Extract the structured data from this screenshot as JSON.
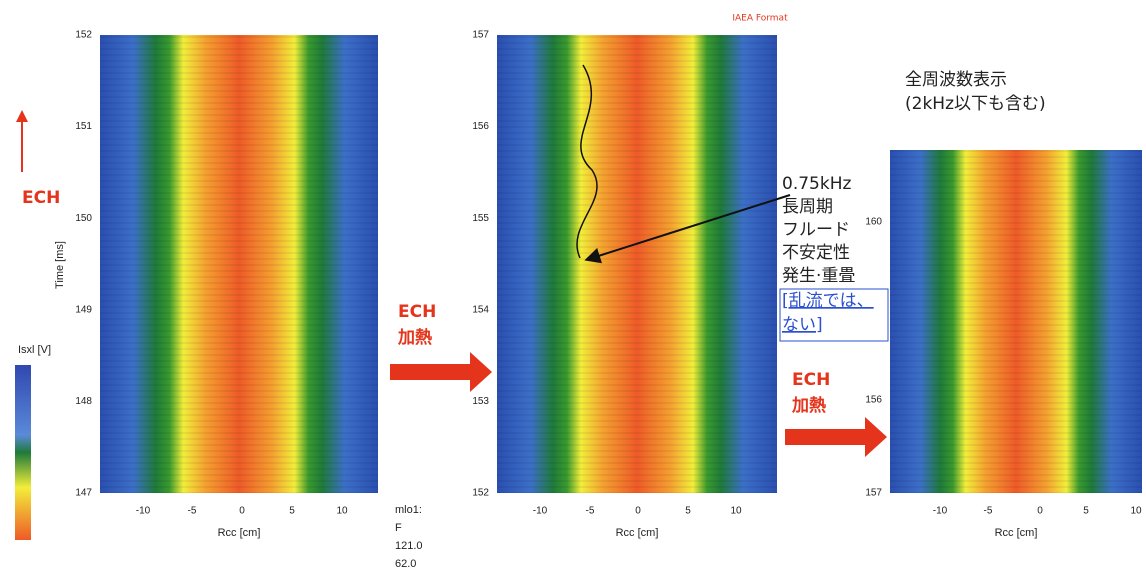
{
  "annotations": {
    "iaea": "IAEA Format",
    "all_freq": [
      "全周波数表示",
      "(2kHz以下も含む)"
    ],
    "ech_left": "ECH",
    "ech_heat_1": [
      "ECH",
      "加熱"
    ],
    "ech_heat_2": [
      "ECH",
      "加熱"
    ],
    "mode_note": [
      "0.75kHz",
      "長周期",
      "フルード",
      "不安定性",
      "発生·重畳"
    ],
    "turbulence_note": [
      "[乱流では、",
      "ない]"
    ],
    "shot_info": [
      "mlo1:",
      "F",
      "121.0",
      "62.0"
    ]
  },
  "colorbar": {
    "label": "Isxl [V]"
  },
  "panels": [
    {
      "y_label": "Time [ms]",
      "x_label": "Rcc [cm]",
      "yticks": [
        "152",
        "151",
        "150",
        "149",
        "148",
        "147"
      ],
      "xticks": [
        "-10",
        "-5",
        "0",
        "5",
        "10"
      ]
    },
    {
      "x_label": "Rcc [cm]",
      "yticks": [
        "157",
        "156",
        "155",
        "154",
        "153",
        "152"
      ],
      "xticks": [
        "-10",
        "-5",
        "0",
        "5",
        "10"
      ]
    },
    {
      "x_label": "Rcc [cm]",
      "yticks": [
        "160",
        "156",
        "157"
      ],
      "xticks": [
        "-10",
        "-5",
        "0",
        "5",
        "10"
      ]
    }
  ]
}
